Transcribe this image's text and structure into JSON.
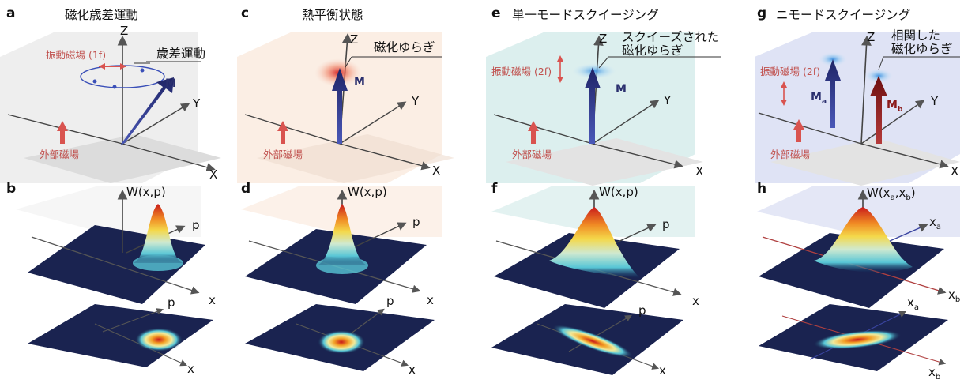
{
  "panels": [
    {
      "letter": "a",
      "title": "磁化歳差運動",
      "annot": "歳差運動",
      "field_osc": "振動磁場 (1f)",
      "field_ext": "外部磁場",
      "m": "M",
      "ax_z": "Z",
      "ax_y": "Y",
      "ax_x": "X"
    },
    {
      "letter": "c",
      "title": "熱平衡状態",
      "annot": "磁化ゆらぎ",
      "field_ext": "外部磁場",
      "m": "M",
      "ax_z": "Z",
      "ax_y": "Y",
      "ax_x": "X"
    },
    {
      "letter": "e",
      "title": "単一モードスクイージング",
      "annot1": "スクイーズされた",
      "annot2": "磁化ゆらぎ",
      "field_osc": "振動磁場 (2f)",
      "field_ext": "外部磁場",
      "m": "M",
      "ax_z": "Z",
      "ax_y": "Y",
      "ax_x": "X"
    },
    {
      "letter": "g",
      "title": "ニモードスクイージング",
      "annot1": "相関した",
      "annot2": "磁化ゆらぎ",
      "field_osc": "振動磁場 (2f)",
      "field_ext": "外部磁場",
      "ma": "M",
      "ma_sub": "a",
      "mb": "M",
      "mb_sub": "b",
      "ax_z": "Z",
      "ax_y": "Y",
      "ax_x": "X"
    }
  ],
  "wigner": [
    {
      "letter": "b",
      "w": "W(x,p)",
      "p": "p",
      "x": "x",
      "p2": "p",
      "x2": "x"
    },
    {
      "letter": "d",
      "w": "W(x,p)",
      "p": "p",
      "x": "x",
      "p2": "p",
      "x2": "x"
    },
    {
      "letter": "f",
      "w": "W(x,p)",
      "p": "p",
      "x": "x",
      "p2": "p",
      "x2": "x"
    },
    {
      "letter": "h",
      "w_pre": "W(x",
      "w_a": "a",
      "w_mid": ",x",
      "w_b": "b",
      "w_post": ")",
      "xa": "x",
      "xa_sub": "a",
      "xb": "x",
      "xb_sub": "b",
      "xa2": "x",
      "xa2_sub": "a",
      "xb2": "x",
      "xb2_sub": "b"
    }
  ],
  "colors": {
    "arrow_blue": "#2d3480",
    "arrow_red": "#8b1a1a",
    "field_red": "#d9534f",
    "floor_dark": "#1a2350",
    "bg_a": "#ededed",
    "bg_c": "#fbeee4",
    "bg_e": "#dcefee",
    "bg_g": "#dfe3f5"
  }
}
